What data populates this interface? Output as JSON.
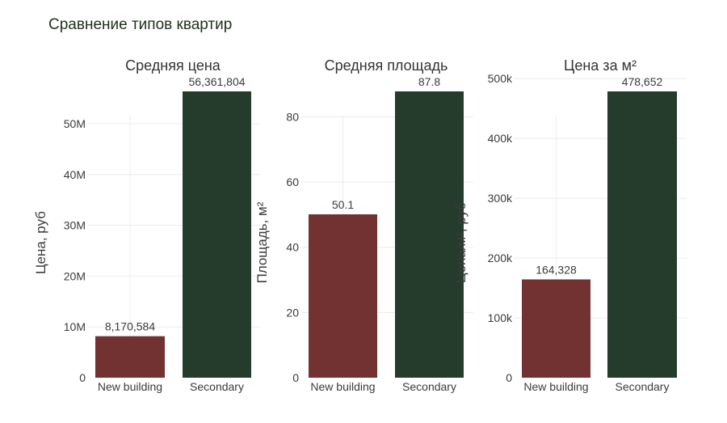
{
  "title": "Сравнение типов квартир",
  "colors": {
    "new_building": "#733232",
    "secondary": "#253b2c",
    "grid": "#ececec",
    "text": "#3b3b3b"
  },
  "chart_data": [
    {
      "type": "bar",
      "title": "Средняя цена",
      "ylabel": "Цена, руб",
      "categories": [
        "New building",
        "Secondary"
      ],
      "values": [
        8170584,
        56361804
      ],
      "value_labels": [
        "8,170,584",
        "56,361,804"
      ],
      "ylim": [
        0,
        56361804
      ],
      "yticks": [
        0,
        10000000,
        20000000,
        30000000,
        40000000,
        50000000
      ],
      "ytick_labels": [
        "0",
        "10M",
        "20M",
        "30M",
        "40M",
        "50M"
      ]
    },
    {
      "type": "bar",
      "title": "Средняя площадь",
      "ylabel": "Площадь, м²",
      "categories": [
        "New building",
        "Secondary"
      ],
      "values": [
        50.1,
        87.8
      ],
      "value_labels": [
        "50.1",
        "87.8"
      ],
      "ylim": [
        0,
        87.8
      ],
      "yticks": [
        0,
        20,
        40,
        60,
        80
      ],
      "ytick_labels": [
        "0",
        "20",
        "40",
        "60",
        "80"
      ]
    },
    {
      "type": "bar",
      "title": "Цена за м²",
      "ylabel": "Цена/м², руб",
      "categories": [
        "New building",
        "Secondary"
      ],
      "values": [
        164328,
        478652
      ],
      "value_labels": [
        "164,328",
        "478,652"
      ],
      "ylim": [
        0,
        478652
      ],
      "yticks": [
        0,
        100000,
        200000,
        300000,
        400000,
        500000
      ],
      "ytick_labels": [
        "0",
        "100k",
        "200k",
        "300k",
        "400k",
        "500k"
      ]
    }
  ]
}
